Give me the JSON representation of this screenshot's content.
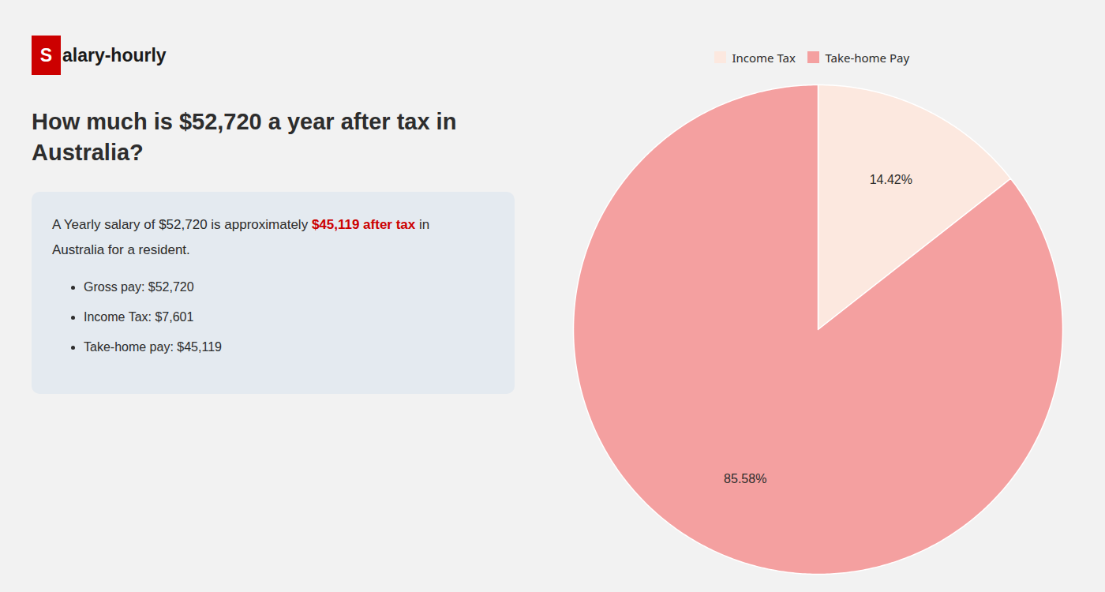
{
  "chart_data": {
    "type": "pie",
    "title": "How much is $52,720 a year after tax in Australia?",
    "categories": [
      "Income Tax",
      "Take-home Pay"
    ],
    "values": [
      14.42,
      85.58
    ],
    "value_labels": [
      "14.42%",
      "85.58%"
    ],
    "colors": [
      "#fce8df",
      "#f4a0a0"
    ],
    "data_labels": true,
    "legend": "top",
    "annotations": [
      [
        {
          "text": "S",
          "color": "#ffffff",
          "background": "#cc0000"
        },
        {
          "text": "alary-hourly",
          "color": "#1a1a1a"
        }
      ],
      [
        {
          "text": "A Yearly salary of $52,720 is approximately "
        },
        {
          "text": "$45,119 after tax",
          "color": "#cc0000"
        },
        {
          "text": " in"
        }
      ],
      [
        {
          "text": "Australia for a resident."
        }
      ],
      [
        {
          "text": "Gross pay: $52,720"
        }
      ],
      [
        {
          "text": "Income Tax: $7,601"
        }
      ],
      [
        {
          "text": "Take-home pay: $45,119"
        }
      ]
    ]
  }
}
